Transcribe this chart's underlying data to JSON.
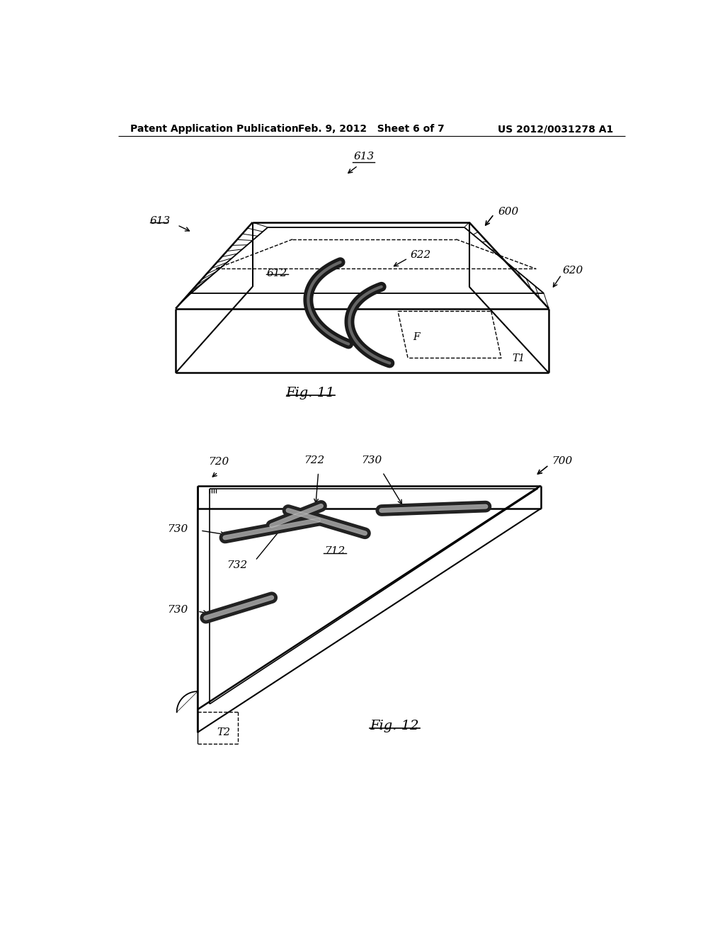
{
  "background_color": "#ffffff",
  "header_left": "Patent Application Publication",
  "header_center": "Feb. 9, 2012   Sheet 6 of 7",
  "header_right": "US 2012/0031278 A1",
  "fig11_caption": "Fig. 11",
  "fig12_caption": "Fig. 12",
  "text_color": "#000000",
  "line_color": "#000000",
  "fig11": {
    "label_600": "600",
    "label_613_top": "613",
    "label_613_left": "613",
    "label_612": "612",
    "label_622": "622",
    "label_620": "620",
    "label_F": "F",
    "label_T1": "T1"
  },
  "fig12": {
    "label_700": "700",
    "label_720": "720",
    "label_722": "722",
    "label_730_top": "730",
    "label_730_mid": "730",
    "label_730_bot": "730",
    "label_712": "712",
    "label_732": "732",
    "label_T2": "T2"
  }
}
